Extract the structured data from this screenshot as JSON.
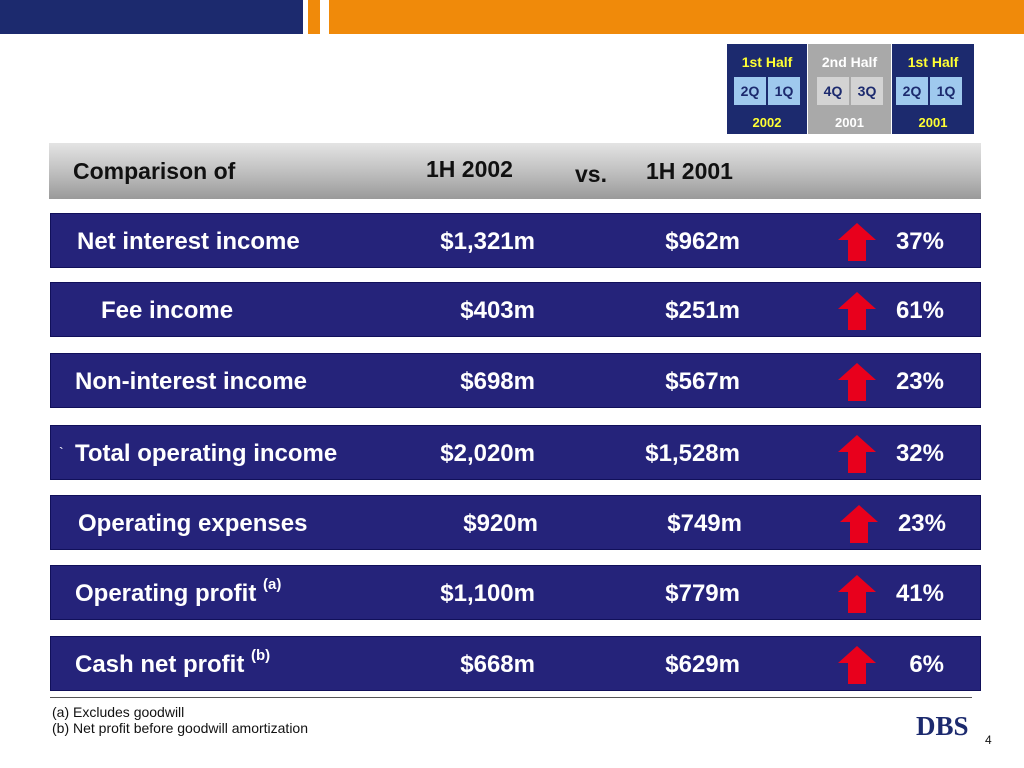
{
  "badge": {
    "col1": {
      "header": "1st Half",
      "q1": "2Q",
      "q2": "1Q",
      "year": "2002"
    },
    "col2": {
      "header": "2nd Half",
      "q1": "4Q",
      "q2": "3Q",
      "year": "2001"
    },
    "col3": {
      "header": "1st Half",
      "q1": "2Q",
      "q2": "1Q",
      "year": "2001"
    }
  },
  "comparison": {
    "label": "Comparison of",
    "period1": "1H 2002",
    "vs": "vs.",
    "period2": "1H 2001"
  },
  "rows": [
    {
      "label": "Net interest income",
      "sup": "",
      "v1": "$1,321m",
      "v2": "$962m",
      "pct": "37%",
      "mark": ""
    },
    {
      "label": "Fee income",
      "sup": "",
      "v1": "$403m",
      "v2": "$251m",
      "pct": "61%",
      "mark": ""
    },
    {
      "label": "Non-interest income",
      "sup": "",
      "v1": "$698m",
      "v2": "$567m",
      "pct": "23%",
      "mark": ""
    },
    {
      "label": "Total operating income",
      "sup": "",
      "v1": "$2,020m",
      "v2": "$1,528m",
      "pct": "32%",
      "mark": "`"
    },
    {
      "label": "Operating expenses",
      "sup": "",
      "v1": "$920m",
      "v2": "$749m",
      "pct": "23%",
      "mark": ""
    },
    {
      "label": "Operating profit",
      "sup": "(a)",
      "v1": "$1,100m",
      "v2": "$779m",
      "pct": "41%",
      "mark": ""
    },
    {
      "label": "Cash net profit",
      "sup": "(b)",
      "v1": "$668m",
      "v2": "$629m",
      "pct": "6%",
      "mark": ""
    }
  ],
  "footnotes": {
    "a": "(a) Excludes goodwill",
    "b": "(b) Net profit before goodwill amortization"
  },
  "logo": "DBS",
  "page_number": "4",
  "colors": {
    "navy": "#1c2a6e",
    "orange": "#f08a0a",
    "arrow_red": "#e8001c",
    "row_bg": "#25237a"
  }
}
